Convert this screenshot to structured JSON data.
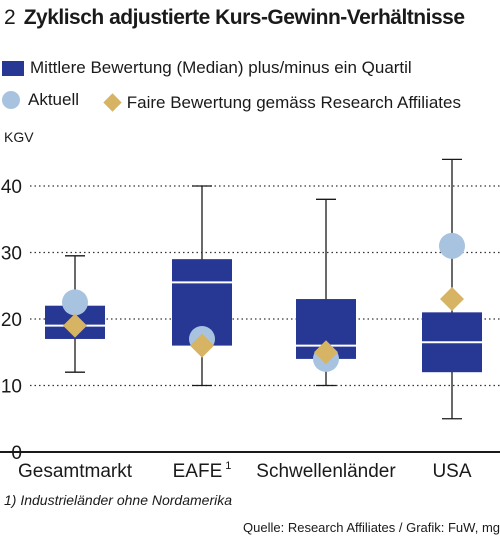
{
  "header": {
    "number": "2",
    "title": "Zyklisch adjustierte Kurs-Gewinn-Verhältnisse"
  },
  "legend": {
    "median_label": "Mittlere Bewertung (Median) plus/minus ein Quartil",
    "current_label": "Aktuell",
    "fair_label": "Faire Bewertung gemäss Research Affiliates"
  },
  "chart_data": {
    "type": "boxplot",
    "ylabel": "KGV",
    "ylim": [
      0,
      45
    ],
    "yticks": [
      0,
      10,
      20,
      30,
      40
    ],
    "grid": "dotted-horizontal",
    "categories": [
      "Gesamtmarkt",
      "EAFE",
      "Schwellenländer",
      "USA"
    ],
    "category_superscripts": [
      "",
      "1",
      "",
      ""
    ],
    "boxes": [
      {
        "min": 12,
        "q1": 17,
        "median": 19,
        "q3": 22,
        "max": 29.5
      },
      {
        "min": 10,
        "q1": 16,
        "median": 25.5,
        "q3": 29,
        "max": 40
      },
      {
        "min": 10,
        "q1": 14,
        "median": 16,
        "q3": 23,
        "max": 38
      },
      {
        "min": 5,
        "q1": 12,
        "median": 16.5,
        "q3": 21,
        "max": 44
      }
    ],
    "current": [
      22.5,
      17,
      14,
      31
    ],
    "fair": [
      19,
      16,
      15,
      23
    ],
    "colors": {
      "box": "#263794",
      "median": "#ffffff",
      "current": "#a8c3e0",
      "fair": "#d7b463",
      "axis": "#1a1a1a"
    }
  },
  "footnote": "1) Industrieländer ohne Nordamerika",
  "source": "Quelle: Research Affiliates / Grafik: FuW, mg"
}
